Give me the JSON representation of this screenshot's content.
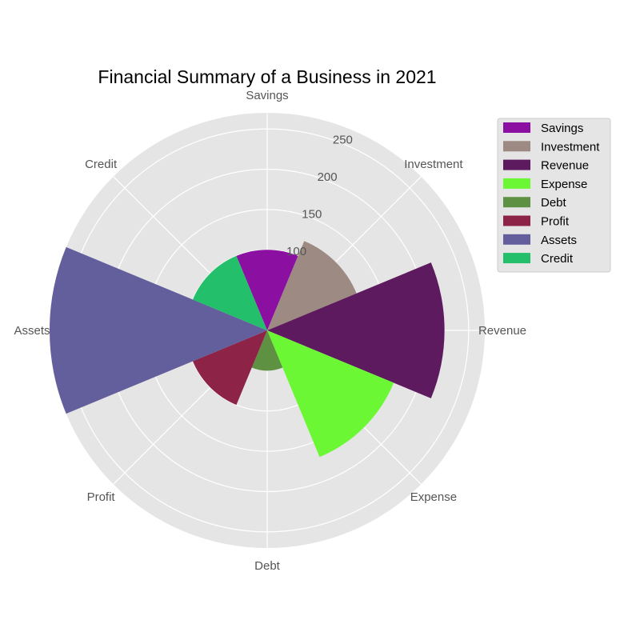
{
  "chart_data": {
    "type": "polar-bar",
    "title": "Financial Summary of a Business in 2021",
    "categories": [
      "Savings",
      "Investment",
      "Revenue",
      "Expense",
      "Debt",
      "Profit",
      "Assets",
      "Credit"
    ],
    "values": [
      100,
      120,
      220,
      170,
      50,
      100,
      270,
      100
    ],
    "colors": [
      "#8b0fa0",
      "#9c8a83",
      "#5e1a5e",
      "#6cf735",
      "#5f9143",
      "#8d2346",
      "#635e9c",
      "#23bf6b"
    ],
    "radial_ticks": [
      100,
      150,
      200,
      250
    ],
    "rlim": [
      0,
      270
    ],
    "grid": true,
    "legend_position": "upper-right"
  }
}
